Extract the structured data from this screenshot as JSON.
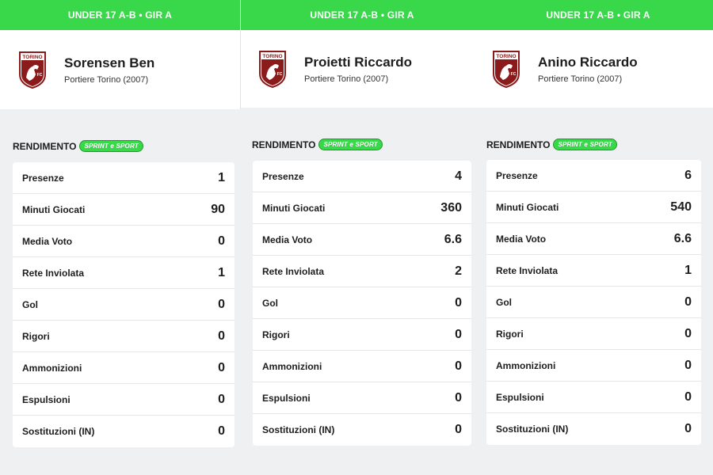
{
  "colors": {
    "accent": "#39d84a",
    "crest": "#8b1a1a",
    "background": "#eef0f1"
  },
  "rendimento_label": "RENDIMENTO",
  "sponsor_badge": "SPRINT e SPORT",
  "crest_text": {
    "top": "TORINO",
    "bottom": "FC"
  },
  "panels": [
    {
      "league": "UNDER 17 A-B • GIR A",
      "player_name": "Sorensen Ben",
      "player_role": "Portiere Torino (2007)",
      "stats": [
        {
          "label": "Presenze",
          "value": "1"
        },
        {
          "label": "Minuti Giocati",
          "value": "90"
        },
        {
          "label": "Media Voto",
          "value": "0"
        },
        {
          "label": "Rete Inviolata",
          "value": "1"
        },
        {
          "label": "Gol",
          "value": "0"
        },
        {
          "label": "Rigori",
          "value": "0"
        },
        {
          "label": "Ammonizioni",
          "value": "0"
        },
        {
          "label": "Espulsioni",
          "value": "0"
        },
        {
          "label": "Sostituzioni (IN)",
          "value": "0"
        }
      ]
    },
    {
      "league": "UNDER 17 A-B • GIR A",
      "player_name": "Proietti Riccardo",
      "player_role": "Portiere Torino (2007)",
      "stats": [
        {
          "label": "Presenze",
          "value": "4"
        },
        {
          "label": "Minuti Giocati",
          "value": "360"
        },
        {
          "label": "Media Voto",
          "value": "6.6"
        },
        {
          "label": "Rete Inviolata",
          "value": "2"
        },
        {
          "label": "Gol",
          "value": "0"
        },
        {
          "label": "Rigori",
          "value": "0"
        },
        {
          "label": "Ammonizioni",
          "value": "0"
        },
        {
          "label": "Espulsioni",
          "value": "0"
        },
        {
          "label": "Sostituzioni (IN)",
          "value": "0"
        }
      ]
    },
    {
      "league": "UNDER 17 A-B • GIR A",
      "player_name": "Anino Riccardo",
      "player_role": "Portiere Torino (2007)",
      "stats": [
        {
          "label": "Presenze",
          "value": "6"
        },
        {
          "label": "Minuti Giocati",
          "value": "540"
        },
        {
          "label": "Media Voto",
          "value": "6.6"
        },
        {
          "label": "Rete Inviolata",
          "value": "1"
        },
        {
          "label": "Gol",
          "value": "0"
        },
        {
          "label": "Rigori",
          "value": "0"
        },
        {
          "label": "Ammonizioni",
          "value": "0"
        },
        {
          "label": "Espulsioni",
          "value": "0"
        },
        {
          "label": "Sostituzioni (IN)",
          "value": "0"
        }
      ]
    }
  ]
}
